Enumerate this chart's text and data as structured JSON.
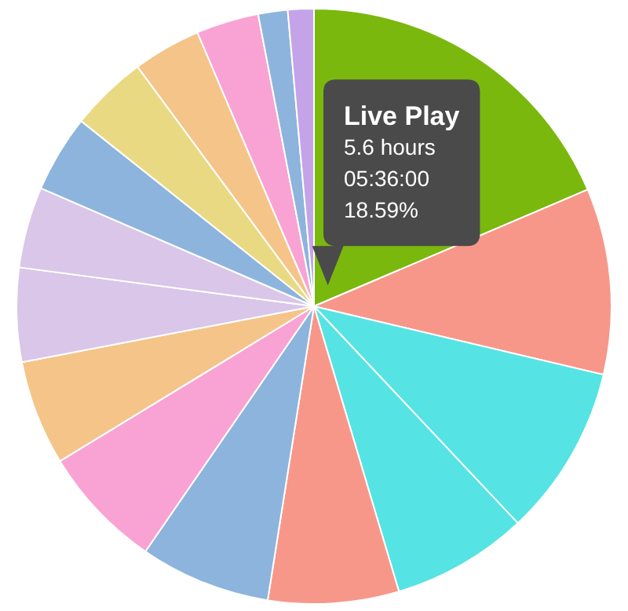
{
  "chart_data": {
    "type": "pie",
    "categories": [
      "Live Play",
      null,
      null,
      null,
      null,
      null,
      null,
      null,
      null,
      null,
      null,
      null,
      null,
      null,
      null,
      null
    ],
    "values": [
      18.59,
      10.1,
      9.3,
      7.4,
      7.1,
      7.1,
      6.7,
      5.7,
      5.1,
      4.4,
      4.2,
      4.2,
      3.7,
      3.4,
      1.6,
      1.41
    ],
    "colors": [
      "#7ab80e",
      "#f7978a",
      "#55e3e3",
      "#55e3e3",
      "#f7978a",
      "#8db4dc",
      "#f8a3d3",
      "#f5c489",
      "#d9c6e8",
      "#d9c6e8",
      "#8db4dc",
      "#e9d982",
      "#f5c489",
      "#f8a3d3",
      "#8db4dc",
      "#c4a3e8"
    ],
    "value_labels": [
      "18.59%",
      null,
      null,
      null,
      null,
      null,
      null,
      null,
      null,
      null,
      null,
      null,
      null,
      null,
      null,
      null
    ],
    "annotations": [
      "5.6 hours",
      "05:36:00"
    ]
  }
}
